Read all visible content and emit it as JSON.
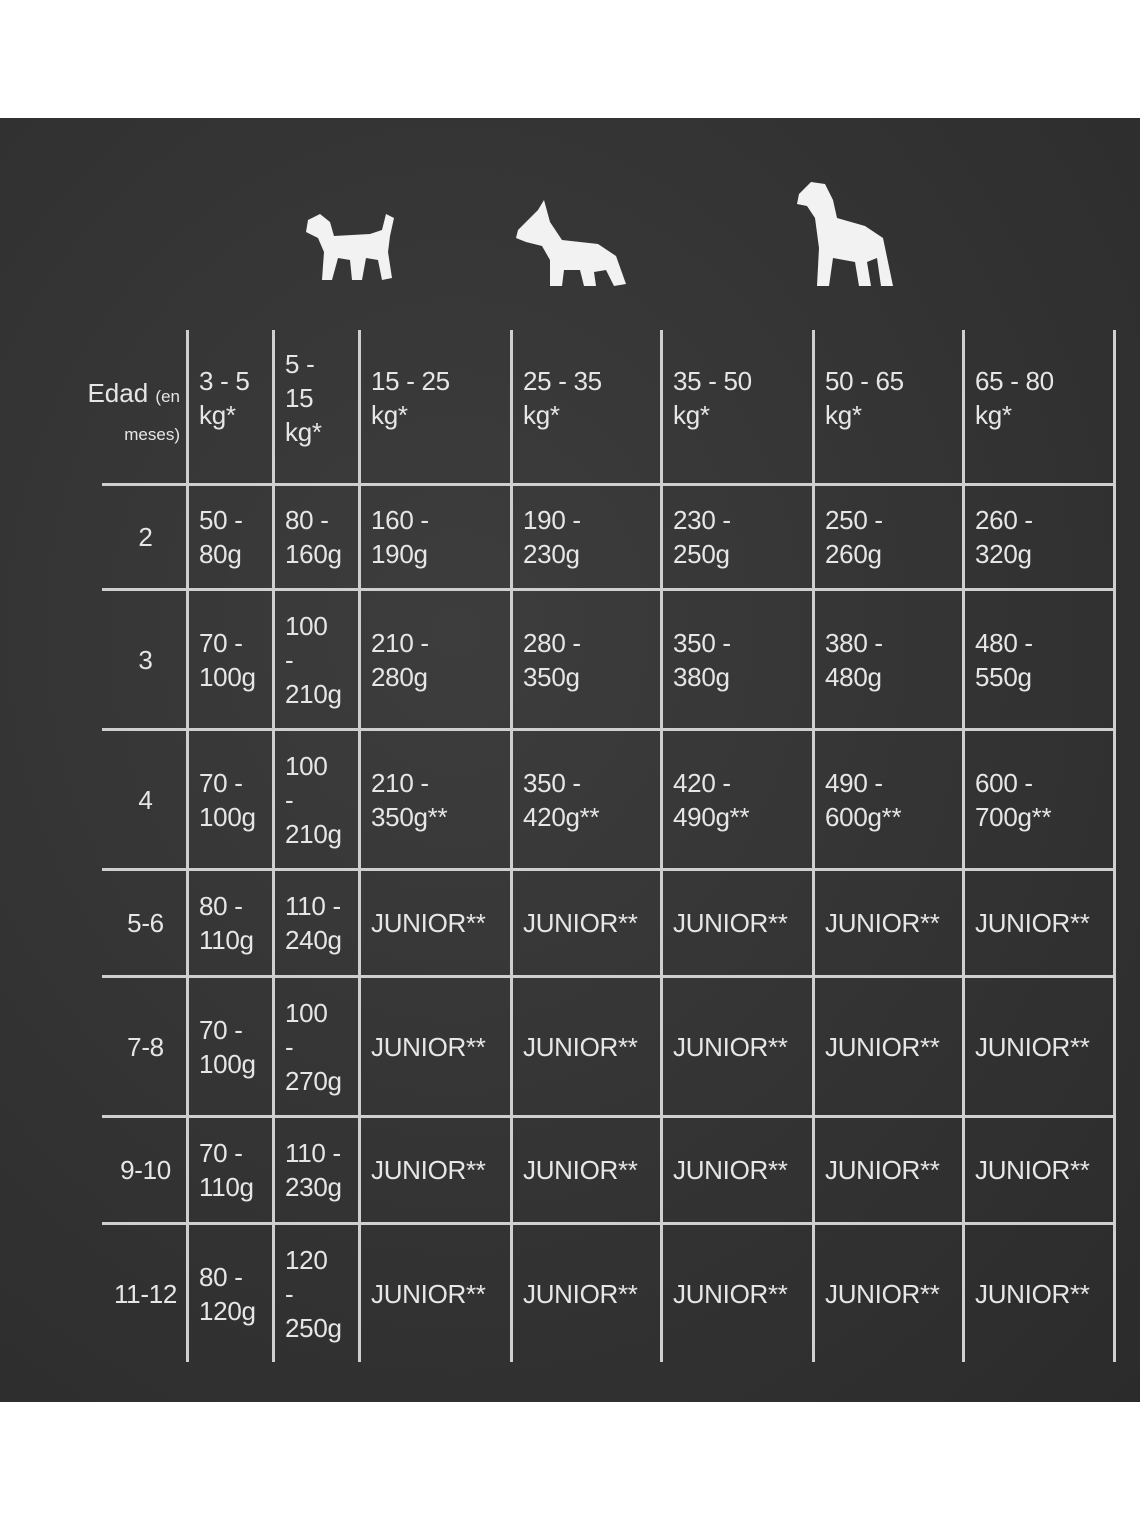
{
  "header": {
    "age_label": "Edad",
    "age_paren_1": "(en",
    "age_paren_2": "meses)",
    "columns": [
      "3 - 5\nkg*",
      "5 -\n15\nkg*",
      "15 - 25\nkg*",
      "25 - 35\nkg*",
      "35 - 50\nkg*",
      "50 - 65\nkg*",
      "65 - 80\nkg*"
    ]
  },
  "icons": [
    "small-dog-icon",
    "medium-dog-icon",
    "large-dog-icon"
  ],
  "rows": [
    {
      "age": "2",
      "values": [
        "50 -\n80g",
        "80 -\n160g",
        "160 -\n190g",
        "190 -\n230g",
        "230 -\n250g",
        "250 -\n260g",
        "260 -\n320g"
      ]
    },
    {
      "age": "3",
      "values": [
        "70 -\n100g",
        "100\n-\n210g",
        "210 -\n280g",
        "280 -\n350g",
        "350 -\n380g",
        "380 -\n480g",
        "480 -\n550g"
      ]
    },
    {
      "age": "4",
      "values": [
        "70 -\n100g",
        "100\n-\n210g",
        "210 -\n350g**",
        "350 -\n420g**",
        "420 -\n490g**",
        "490 -\n600g**",
        "600 -\n700g**"
      ]
    },
    {
      "age": "5-6",
      "values": [
        "80 -\n110g",
        "110 -\n240g",
        "JUNIOR**",
        "JUNIOR**",
        "JUNIOR**",
        "JUNIOR**",
        "JUNIOR**"
      ]
    },
    {
      "age": "7-8",
      "values": [
        "70 -\n100g",
        "100\n-\n270g",
        "JUNIOR**",
        "JUNIOR**",
        "JUNIOR**",
        "JUNIOR**",
        "JUNIOR**"
      ]
    },
    {
      "age": "9-10",
      "values": [
        "70 -\n110g",
        "110 -\n230g",
        "JUNIOR**",
        "JUNIOR**",
        "JUNIOR**",
        "JUNIOR**",
        "JUNIOR**"
      ]
    },
    {
      "age": "11-12",
      "values": [
        "80 -\n120g",
        "120\n-\n250g",
        "JUNIOR**",
        "JUNIOR**",
        "JUNIOR**",
        "JUNIOR**",
        "JUNIOR**"
      ]
    }
  ],
  "colors": {
    "board": "#333333",
    "chalk": "#e6e6e6"
  }
}
